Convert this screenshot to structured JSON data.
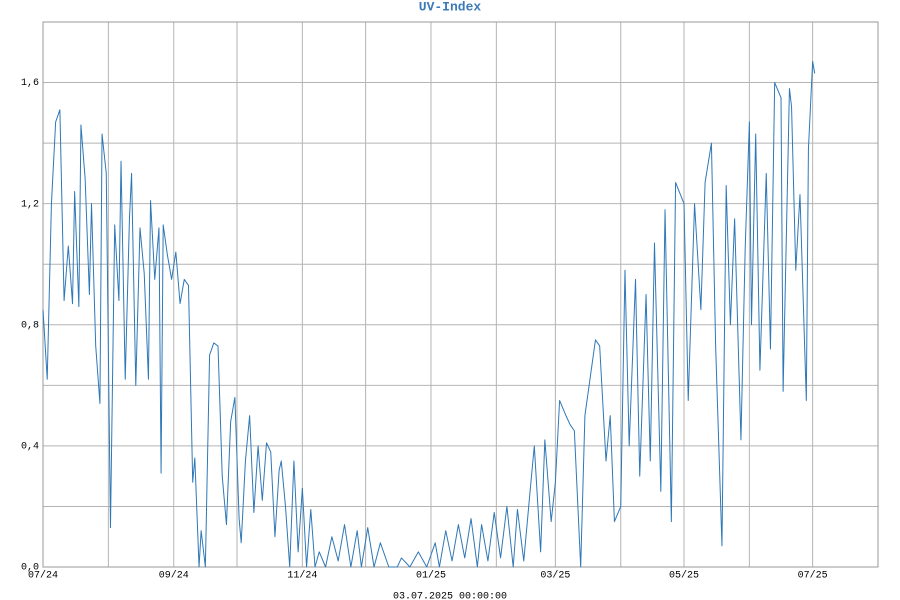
{
  "chart_data": {
    "type": "line",
    "title": "UV-Index",
    "footer": "03.07.2025 00:00:00",
    "xlim": [
      0,
      396
    ],
    "ylim": [
      0,
      1.8
    ],
    "xticks": [
      {
        "value": 0,
        "label": "07/24"
      },
      {
        "value": 62,
        "label": "09/24"
      },
      {
        "value": 123,
        "label": "11/24"
      },
      {
        "value": 184,
        "label": "01/25"
      },
      {
        "value": 243,
        "label": "03/25"
      },
      {
        "value": 304,
        "label": "05/25"
      },
      {
        "value": 365,
        "label": "07/25"
      }
    ],
    "xgrid": [
      31,
      92,
      153,
      215,
      274,
      335
    ],
    "yticks": [
      {
        "value": 0,
        "label": "0,0"
      },
      {
        "value": 0.4,
        "label": "0,4"
      },
      {
        "value": 0.8,
        "label": "0,8"
      },
      {
        "value": 1.2,
        "label": "1,2"
      },
      {
        "value": 1.6,
        "label": "1,6"
      }
    ],
    "ygrid": [
      0.2,
      0.6,
      1.0,
      1.4
    ],
    "grid": true,
    "series": [
      {
        "name": "UV-Index",
        "color": "#2f78b7",
        "x": [
          0,
          2,
          4,
          6,
          8,
          10,
          12,
          14,
          15,
          17,
          18,
          20,
          22,
          23,
          25,
          27,
          28,
          30,
          32,
          34,
          36,
          37,
          39,
          41,
          42,
          44,
          46,
          48,
          50,
          51,
          53,
          55,
          56,
          57,
          59,
          61,
          63,
          65,
          67,
          69,
          71,
          72,
          74,
          75,
          77,
          79,
          81,
          83,
          85,
          87,
          89,
          91,
          93,
          94,
          96,
          98,
          100,
          102,
          104,
          106,
          108,
          110,
          112,
          113,
          115,
          117,
          119,
          121,
          123,
          125,
          127,
          129,
          131,
          134,
          137,
          140,
          143,
          146,
          149,
          151,
          154,
          157,
          160,
          164,
          168,
          170,
          174,
          178,
          182,
          186,
          188,
          191,
          194,
          197,
          200,
          203,
          206,
          208,
          211,
          214,
          217,
          220,
          223,
          225,
          228,
          231,
          233,
          236,
          238,
          241,
          243,
          245,
          248,
          250,
          252,
          255,
          257,
          260,
          262,
          264,
          267,
          269,
          271,
          274,
          276,
          278,
          281,
          283,
          286,
          288,
          290,
          293,
          295,
          298,
          300,
          304,
          306,
          309,
          312,
          314,
          317,
          319,
          322,
          324,
          326,
          328,
          331,
          333,
          335,
          336,
          338,
          340,
          343,
          345,
          347,
          350,
          351,
          354,
          355,
          357,
          359,
          362,
          363,
          365,
          366
        ],
        "values": [
          0.85,
          0.62,
          1.2,
          1.47,
          1.51,
          0.88,
          1.06,
          0.87,
          1.24,
          0.86,
          1.46,
          1.28,
          0.9,
          1.2,
          0.73,
          0.54,
          1.43,
          1.3,
          0.13,
          1.13,
          0.88,
          1.34,
          0.62,
          1.15,
          1.3,
          0.6,
          1.12,
          0.97,
          0.62,
          1.21,
          0.95,
          1.12,
          0.31,
          1.13,
          1.03,
          0.95,
          1.04,
          0.87,
          0.95,
          0.93,
          0.28,
          0.36,
          0,
          0.12,
          0,
          0.7,
          0.74,
          0.73,
          0.3,
          0.14,
          0.48,
          0.56,
          0.16,
          0.08,
          0.35,
          0.5,
          0.18,
          0.4,
          0.22,
          0.41,
          0.38,
          0.1,
          0.32,
          0.35,
          0.2,
          0,
          0.35,
          0.05,
          0.26,
          0,
          0.19,
          0,
          0.05,
          0,
          0.1,
          0.02,
          0.14,
          0,
          0.12,
          0,
          0.13,
          0,
          0.08,
          0,
          0,
          0.03,
          0,
          0.05,
          0,
          0.08,
          0,
          0.12,
          0.02,
          0.14,
          0.03,
          0.16,
          0,
          0.14,
          0.02,
          0.18,
          0.03,
          0.2,
          0,
          0.19,
          0.02,
          0.25,
          0.4,
          0.05,
          0.42,
          0.15,
          0.28,
          0.55,
          0.5,
          0.47,
          0.45,
          0,
          0.5,
          0.65,
          0.75,
          0.73,
          0.35,
          0.5,
          0.15,
          0.2,
          0.98,
          0.4,
          0.95,
          0.3,
          0.9,
          0.35,
          1.07,
          0.25,
          1.18,
          0.15,
          1.27,
          1.2,
          0.55,
          1.2,
          0.85,
          1.27,
          1.4,
          0.73,
          0.07,
          1.26,
          0.8,
          1.15,
          0.42,
          1.05,
          1.47,
          0.8,
          1.43,
          0.65,
          1.3,
          0.72,
          1.6,
          1.55,
          0.58,
          1.58,
          1.52,
          0.98,
          1.23,
          0.55,
          1.38,
          1.67,
          1.63
        ]
      }
    ]
  }
}
